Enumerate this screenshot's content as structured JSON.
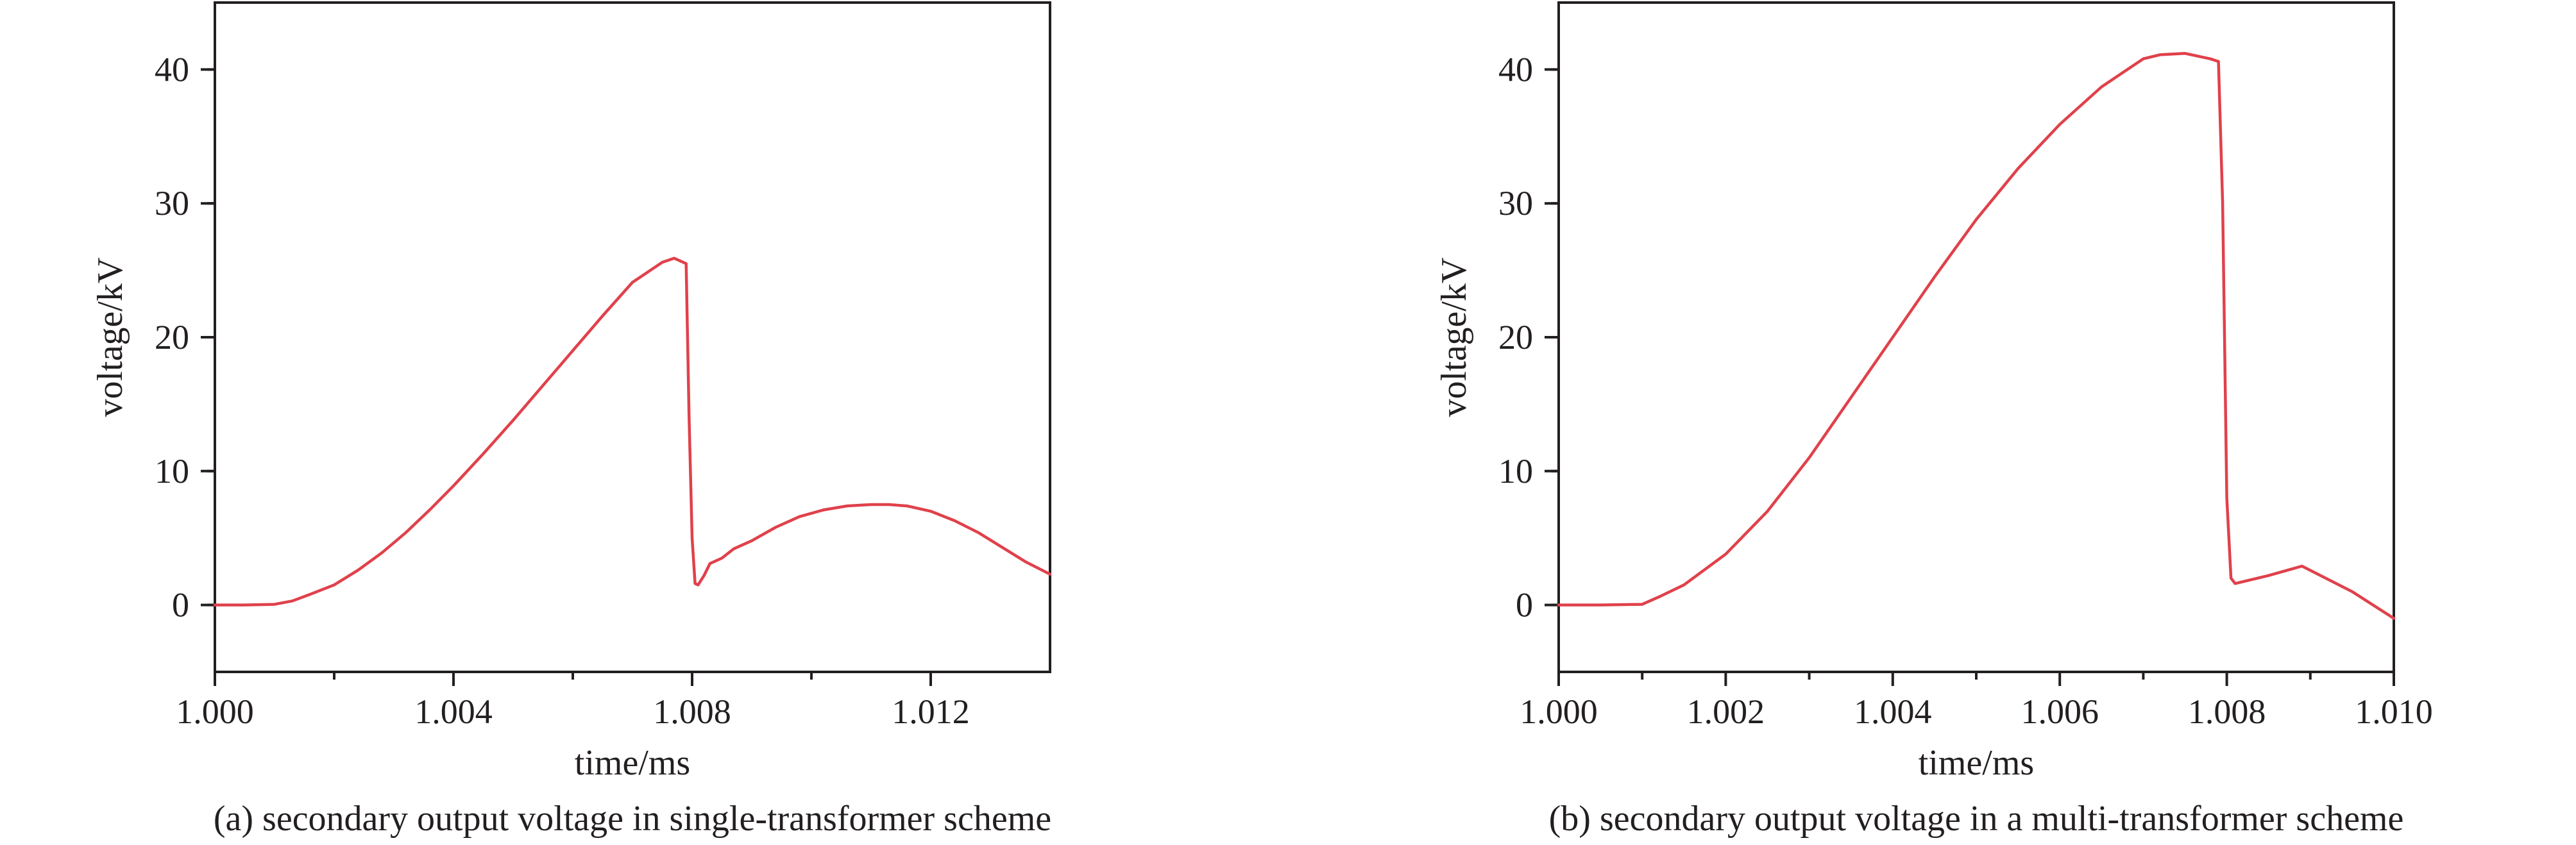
{
  "chart_data": [
    {
      "type": "line",
      "caption": "(a) secondary output voltage in single-transformer scheme",
      "xlabel": "time/ms",
      "ylabel": "voltage/kV",
      "xlim": [
        1.0,
        1.014
      ],
      "ylim": [
        -5,
        45
      ],
      "xticks": [
        "1.000",
        "1.004",
        "1.008",
        "1.012"
      ],
      "yticks": [
        "0",
        "10",
        "20",
        "30",
        "40"
      ],
      "grid": false,
      "line_color": "#e0414b",
      "series": [
        {
          "x": [
            1.0,
            1.0005,
            1.001,
            1.0013,
            1.0016,
            1.002,
            1.0024,
            1.0028,
            1.0032,
            1.0036,
            1.004,
            1.0045,
            1.005,
            1.0055,
            1.006,
            1.0065,
            1.007,
            1.0075,
            1.0077,
            1.0079,
            1.00795,
            1.008,
            1.00805,
            1.0081,
            1.0082,
            1.0083,
            1.0085,
            1.0087,
            1.009,
            1.0094,
            1.0098,
            1.0102,
            1.0106,
            1.011,
            1.0113,
            1.0116,
            1.012,
            1.0124,
            1.0128,
            1.0132,
            1.0136,
            1.014
          ],
          "y": [
            0,
            0,
            0.05,
            0.3,
            0.8,
            1.5,
            2.6,
            3.9,
            5.4,
            7.1,
            8.9,
            11.3,
            13.8,
            16.4,
            19.0,
            21.6,
            24.1,
            25.6,
            25.9,
            25.5,
            14.0,
            5.0,
            1.6,
            1.5,
            2.2,
            3.1,
            3.5,
            4.2,
            4.8,
            5.8,
            6.6,
            7.1,
            7.4,
            7.5,
            7.5,
            7.4,
            7.0,
            6.3,
            5.4,
            4.3,
            3.2,
            2.3
          ]
        }
      ]
    },
    {
      "type": "line",
      "caption": "(b) secondary output voltage in a multi-transformer scheme",
      "xlabel": "time/ms",
      "ylabel": "voltage/kV",
      "xlim": [
        1.0,
        1.01
      ],
      "ylim": [
        -5,
        45
      ],
      "xticks": [
        "1.000",
        "1.002",
        "1.004",
        "1.006",
        "1.008",
        "1.010"
      ],
      "yticks": [
        "0",
        "10",
        "20",
        "30",
        "40"
      ],
      "grid": false,
      "line_color": "#e0414b",
      "series": [
        {
          "x": [
            1.0,
            1.0005,
            1.001,
            1.0012,
            1.0015,
            1.002,
            1.0025,
            1.003,
            1.0035,
            1.004,
            1.0045,
            1.005,
            1.0055,
            1.006,
            1.0065,
            1.007,
            1.0072,
            1.0075,
            1.0078,
            1.0079,
            1.00795,
            1.008,
            1.00805,
            1.0081,
            1.0085,
            1.0089,
            1.0095,
            1.01
          ],
          "y": [
            0,
            0,
            0.05,
            0.6,
            1.5,
            3.8,
            7.0,
            11.0,
            15.5,
            20.0,
            24.5,
            28.8,
            32.6,
            35.9,
            38.7,
            40.8,
            41.1,
            41.2,
            40.8,
            40.6,
            30.0,
            8.0,
            2.0,
            1.6,
            2.2,
            2.9,
            1.0,
            -1.0
          ]
        }
      ]
    }
  ]
}
